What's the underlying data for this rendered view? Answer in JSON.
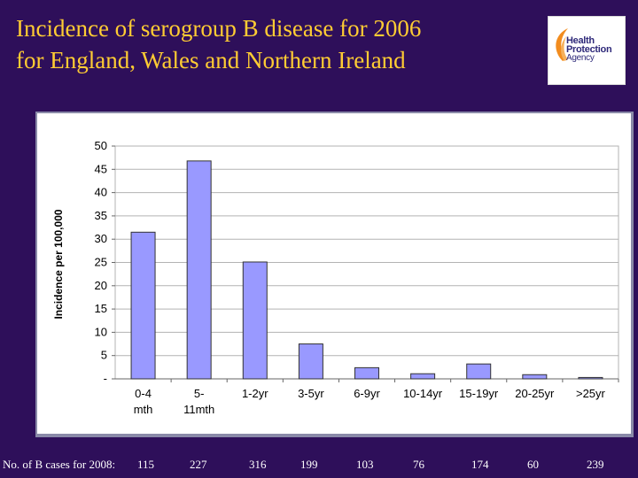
{
  "title_lines": [
    "Incidence of serogroup B disease for 2006",
    "for England, Wales and Northern Ireland"
  ],
  "logo": {
    "lines": [
      "Health",
      "Protection",
      "Agency"
    ],
    "colors": {
      "orange": "#f28c1e",
      "navy": "#2f2a7a"
    }
  },
  "footer": {
    "label": "No. of B cases for 2008:",
    "counts": [
      "115",
      "227",
      "316",
      "199",
      "103",
      "76",
      "174",
      "60",
      "239"
    ]
  },
  "colors": {
    "background": "#2e0f5a",
    "title": "#ffcc33",
    "bar_fill": "#9999ff",
    "bar_stroke": "#333333"
  },
  "chart_data": {
    "type": "bar",
    "categories": [
      [
        "0-4",
        "mth"
      ],
      [
        "5-",
        "11mth"
      ],
      [
        "1-2yr"
      ],
      [
        "3-5yr"
      ],
      [
        "6-9yr"
      ],
      [
        "10-14yr"
      ],
      [
        "15-19yr"
      ],
      [
        "20-25yr"
      ],
      [
        ">25yr"
      ]
    ],
    "values": [
      31.5,
      46.8,
      25.1,
      7.5,
      2.4,
      1.1,
      3.2,
      0.9,
      0.3
    ],
    "ylabel": "Incidence per 100,000",
    "xlabel": "",
    "ylim": [
      0,
      50
    ],
    "yticks": [
      0,
      5,
      10,
      15,
      20,
      25,
      30,
      35,
      40,
      45,
      50
    ],
    "ytick_labels": [
      "-",
      "5",
      "10",
      "15",
      "20",
      "25",
      "30",
      "35",
      "40",
      "45",
      "50"
    ],
    "grid": true
  }
}
